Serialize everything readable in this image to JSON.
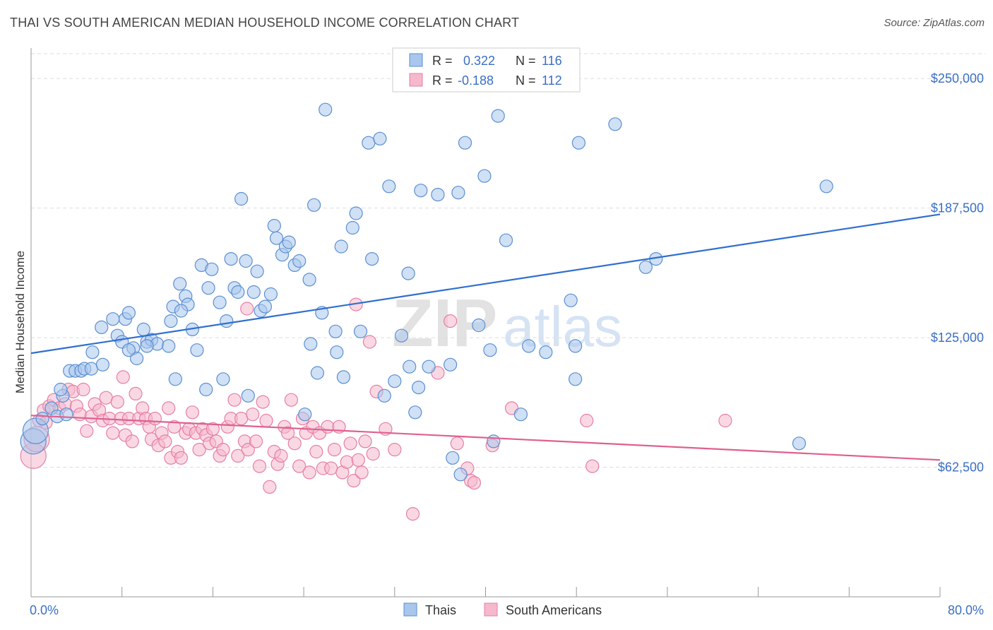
{
  "header": {
    "title": "THAI VS SOUTH AMERICAN MEDIAN HOUSEHOLD INCOME CORRELATION CHART",
    "source": "Source: ZipAtlas.com"
  },
  "watermark": {
    "zip": "ZIP",
    "atlas": "atlas"
  },
  "legend_box": {
    "rows": [
      {
        "r_label": "R =",
        "r_value": "0.322",
        "n_label": "N =",
        "n_value": "116"
      },
      {
        "r_label": "R =",
        "r_value": "-0.188",
        "n_label": "N =",
        "n_value": "112"
      }
    ]
  },
  "colors": {
    "blue_fill": "#a9c6ec",
    "blue_stroke": "#5b8fd1",
    "blue_line": "#2f6fcf",
    "pink_fill": "#f5b8cc",
    "pink_stroke": "#e57fa3",
    "pink_line": "#e0608f",
    "axis_label": "#3a6fc4",
    "grid": "#dddddd"
  },
  "chart_data": {
    "type": "scatter",
    "xlabel": "",
    "ylabel": "Median Household Income",
    "xlim": [
      0,
      80
    ],
    "ylim": [
      0,
      262000
    ],
    "x_tick_labels": [
      "0.0%",
      "80.0%"
    ],
    "y_ticks": [
      62500,
      125000,
      187500,
      250000
    ],
    "y_tick_labels": [
      "$62,500",
      "$125,000",
      "$187,500",
      "$250,000"
    ],
    "grid": true,
    "legend_position": "bottom-center",
    "series": [
      {
        "name": "Thais",
        "r": 0.322,
        "n": 116,
        "trend": [
          [
            0,
            117500
          ],
          [
            80,
            184500
          ]
        ],
        "points": [
          [
            0.2,
            75000
          ],
          [
            0.4,
            80000
          ],
          [
            1.0,
            86000
          ],
          [
            1.8,
            91000
          ],
          [
            2.3,
            87000
          ],
          [
            2.8,
            97000
          ],
          [
            2.6,
            100000
          ],
          [
            3.1,
            88000
          ],
          [
            3.4,
            109000
          ],
          [
            3.9,
            109000
          ],
          [
            4.4,
            109000
          ],
          [
            4.7,
            110000
          ],
          [
            5.3,
            110000
          ],
          [
            5.4,
            118000
          ],
          [
            6.3,
            112000
          ],
          [
            6.2,
            130000
          ],
          [
            7.2,
            134000
          ],
          [
            7.6,
            126000
          ],
          [
            8.0,
            123000
          ],
          [
            8.3,
            134000
          ],
          [
            8.6,
            137000
          ],
          [
            9.0,
            120000
          ],
          [
            9.3,
            115000
          ],
          [
            9.9,
            129000
          ],
          [
            10.2,
            123000
          ],
          [
            10.6,
            124000
          ],
          [
            11.1,
            122000
          ],
          [
            12.1,
            121000
          ],
          [
            12.3,
            133000
          ],
          [
            12.5,
            140000
          ],
          [
            12.7,
            105000
          ],
          [
            13.1,
            151000
          ],
          [
            13.6,
            145000
          ],
          [
            13.8,
            141000
          ],
          [
            14.2,
            129000
          ],
          [
            14.6,
            119000
          ],
          [
            15.0,
            160000
          ],
          [
            15.4,
            100000
          ],
          [
            15.6,
            149000
          ],
          [
            15.9,
            158000
          ],
          [
            16.6,
            142000
          ],
          [
            16.9,
            105000
          ],
          [
            17.2,
            133000
          ],
          [
            17.6,
            163000
          ],
          [
            17.9,
            149000
          ],
          [
            18.2,
            147000
          ],
          [
            18.5,
            192000
          ],
          [
            18.9,
            162000
          ],
          [
            19.1,
            97000
          ],
          [
            19.6,
            147000
          ],
          [
            19.9,
            157000
          ],
          [
            20.2,
            138000
          ],
          [
            20.6,
            140000
          ],
          [
            21.1,
            146000
          ],
          [
            21.4,
            179000
          ],
          [
            21.6,
            173000
          ],
          [
            22.1,
            165000
          ],
          [
            22.4,
            169000
          ],
          [
            22.7,
            171000
          ],
          [
            23.2,
            160000
          ],
          [
            23.6,
            162000
          ],
          [
            24.1,
            88000
          ],
          [
            24.5,
            153000
          ],
          [
            24.9,
            189000
          ],
          [
            25.2,
            108000
          ],
          [
            25.6,
            137000
          ],
          [
            25.9,
            235000
          ],
          [
            26.8,
            128000
          ],
          [
            26.9,
            118000
          ],
          [
            27.3,
            169000
          ],
          [
            27.5,
            106000
          ],
          [
            28.3,
            178000
          ],
          [
            28.6,
            185000
          ],
          [
            29.0,
            128000
          ],
          [
            29.7,
            219000
          ],
          [
            30.0,
            163000
          ],
          [
            30.7,
            221000
          ],
          [
            31.1,
            97000
          ],
          [
            31.5,
            198000
          ],
          [
            32.0,
            104000
          ],
          [
            32.6,
            126000
          ],
          [
            33.2,
            156000
          ],
          [
            33.3,
            111000
          ],
          [
            33.8,
            89000
          ],
          [
            34.1,
            101000
          ],
          [
            34.3,
            196000
          ],
          [
            35.0,
            111000
          ],
          [
            35.8,
            194000
          ],
          [
            36.9,
            112000
          ],
          [
            37.1,
            67000
          ],
          [
            37.6,
            195000
          ],
          [
            37.8,
            59000
          ],
          [
            38.2,
            219000
          ],
          [
            39.4,
            131000
          ],
          [
            39.9,
            203000
          ],
          [
            40.4,
            119000
          ],
          [
            40.7,
            75000
          ],
          [
            41.1,
            232000
          ],
          [
            41.8,
            172000
          ],
          [
            43.1,
            88000
          ],
          [
            43.8,
            121000
          ],
          [
            45.3,
            118000
          ],
          [
            47.5,
            143000
          ],
          [
            47.9,
            121000
          ],
          [
            47.9,
            105000
          ],
          [
            48.2,
            219000
          ],
          [
            51.4,
            228000
          ],
          [
            54.1,
            159000
          ],
          [
            55.0,
            163000
          ],
          [
            70.0,
            198000
          ],
          [
            67.6,
            74000
          ],
          [
            8.6,
            119000
          ],
          [
            13.2,
            138000
          ],
          [
            10.2,
            121000
          ],
          [
            24.6,
            122000
          ]
        ]
      },
      {
        "name": "South Americans",
        "r": -0.188,
        "n": 112,
        "trend": [
          [
            0,
            87500
          ],
          [
            80,
            66000
          ]
        ],
        "points": [
          [
            0.2,
            68000
          ],
          [
            0.5,
            76000
          ],
          [
            0.7,
            85000
          ],
          [
            1.1,
            90000
          ],
          [
            1.3,
            84000
          ],
          [
            1.6,
            92000
          ],
          [
            2.0,
            95000
          ],
          [
            2.5,
            91000
          ],
          [
            3.0,
            93000
          ],
          [
            3.3,
            100000
          ],
          [
            3.7,
            99000
          ],
          [
            4.0,
            92000
          ],
          [
            4.3,
            88000
          ],
          [
            4.6,
            100000
          ],
          [
            4.9,
            80000
          ],
          [
            5.3,
            87000
          ],
          [
            5.6,
            93000
          ],
          [
            6.0,
            90000
          ],
          [
            6.3,
            85000
          ],
          [
            6.6,
            96000
          ],
          [
            6.9,
            86000
          ],
          [
            7.2,
            79000
          ],
          [
            7.6,
            94000
          ],
          [
            7.9,
            86000
          ],
          [
            8.1,
            106000
          ],
          [
            8.3,
            78000
          ],
          [
            8.6,
            86000
          ],
          [
            8.9,
            75000
          ],
          [
            9.2,
            98000
          ],
          [
            9.5,
            86000
          ],
          [
            9.8,
            91000
          ],
          [
            10.1,
            86000
          ],
          [
            10.4,
            82000
          ],
          [
            10.6,
            76000
          ],
          [
            10.9,
            86000
          ],
          [
            11.2,
            73000
          ],
          [
            11.5,
            79000
          ],
          [
            11.8,
            75000
          ],
          [
            12.1,
            91000
          ],
          [
            12.3,
            67000
          ],
          [
            12.6,
            82000
          ],
          [
            12.9,
            70000
          ],
          [
            13.2,
            67000
          ],
          [
            13.6,
            79000
          ],
          [
            13.9,
            81000
          ],
          [
            14.2,
            89000
          ],
          [
            14.5,
            79000
          ],
          [
            14.8,
            71000
          ],
          [
            15.1,
            81000
          ],
          [
            15.4,
            78000
          ],
          [
            15.7,
            74000
          ],
          [
            16.0,
            81000
          ],
          [
            16.3,
            75000
          ],
          [
            16.6,
            68000
          ],
          [
            16.9,
            71000
          ],
          [
            17.3,
            82000
          ],
          [
            17.6,
            86000
          ],
          [
            17.9,
            95000
          ],
          [
            18.2,
            68000
          ],
          [
            18.5,
            86000
          ],
          [
            18.8,
            75000
          ],
          [
            19.1,
            71000
          ],
          [
            19.5,
            88000
          ],
          [
            19.8,
            75000
          ],
          [
            20.1,
            63000
          ],
          [
            20.4,
            94000
          ],
          [
            20.7,
            85000
          ],
          [
            21.0,
            53000
          ],
          [
            21.4,
            70000
          ],
          [
            21.7,
            64000
          ],
          [
            22.0,
            68000
          ],
          [
            22.3,
            82000
          ],
          [
            22.6,
            79000
          ],
          [
            22.9,
            95000
          ],
          [
            23.2,
            74000
          ],
          [
            23.6,
            63000
          ],
          [
            23.9,
            86000
          ],
          [
            24.2,
            79000
          ],
          [
            24.5,
            60000
          ],
          [
            24.8,
            82000
          ],
          [
            25.1,
            70000
          ],
          [
            25.4,
            79000
          ],
          [
            25.7,
            62000
          ],
          [
            26.1,
            82000
          ],
          [
            26.4,
            62000
          ],
          [
            26.7,
            71000
          ],
          [
            27.1,
            82000
          ],
          [
            27.4,
            60000
          ],
          [
            27.8,
            65000
          ],
          [
            28.1,
            74000
          ],
          [
            28.4,
            56000
          ],
          [
            28.8,
            66000
          ],
          [
            29.1,
            60000
          ],
          [
            29.4,
            75000
          ],
          [
            29.8,
            123000
          ],
          [
            30.1,
            69000
          ],
          [
            30.4,
            99000
          ],
          [
            31.2,
            81000
          ],
          [
            32.0,
            71000
          ],
          [
            33.6,
            40000
          ],
          [
            35.8,
            108000
          ],
          [
            36.9,
            133000
          ],
          [
            37.5,
            74000
          ],
          [
            38.4,
            62000
          ],
          [
            38.7,
            56000
          ],
          [
            39.0,
            55000
          ],
          [
            40.6,
            73000
          ],
          [
            42.3,
            91000
          ],
          [
            48.9,
            85000
          ],
          [
            49.4,
            63000
          ],
          [
            61.1,
            85000
          ],
          [
            28.6,
            141000
          ],
          [
            19.0,
            139000
          ]
        ]
      }
    ]
  }
}
